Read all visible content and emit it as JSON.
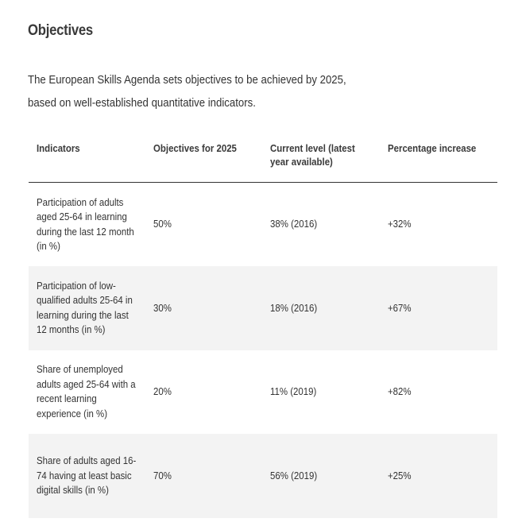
{
  "heading": "Objectives",
  "intro": {
    "line1": "The European Skills Agenda sets objectives to be achieved by 2025,",
    "line2": "based on well-established quantitative indicators."
  },
  "table": {
    "headers": {
      "indicators": "Indicators",
      "objectives": "Objectives for 2025",
      "current": "Current level (latest year available)",
      "increase": "Percentage increase"
    },
    "rows": [
      {
        "indicator": "Participation of adults aged 25-64 in learning during the last 12 month (in %)",
        "objective": "50%",
        "current": "38% (2016)",
        "increase": "+32%"
      },
      {
        "indicator": "Participation of low-qualified adults 25-64 in learning during the last 12 months (in %)",
        "objective": "30%",
        "current": "18% (2016)",
        "increase": "+67%"
      },
      {
        "indicator": "Share of unemployed adults aged 25-64 with a recent learning experience (in %)",
        "objective": "20%",
        "current": "11% (2019)",
        "increase": "+82%"
      },
      {
        "indicator": "Share of adults aged 16-74 having at least basic digital skills (in %)",
        "objective": "70%",
        "current": "56% (2019)",
        "increase": "+25%"
      }
    ]
  }
}
